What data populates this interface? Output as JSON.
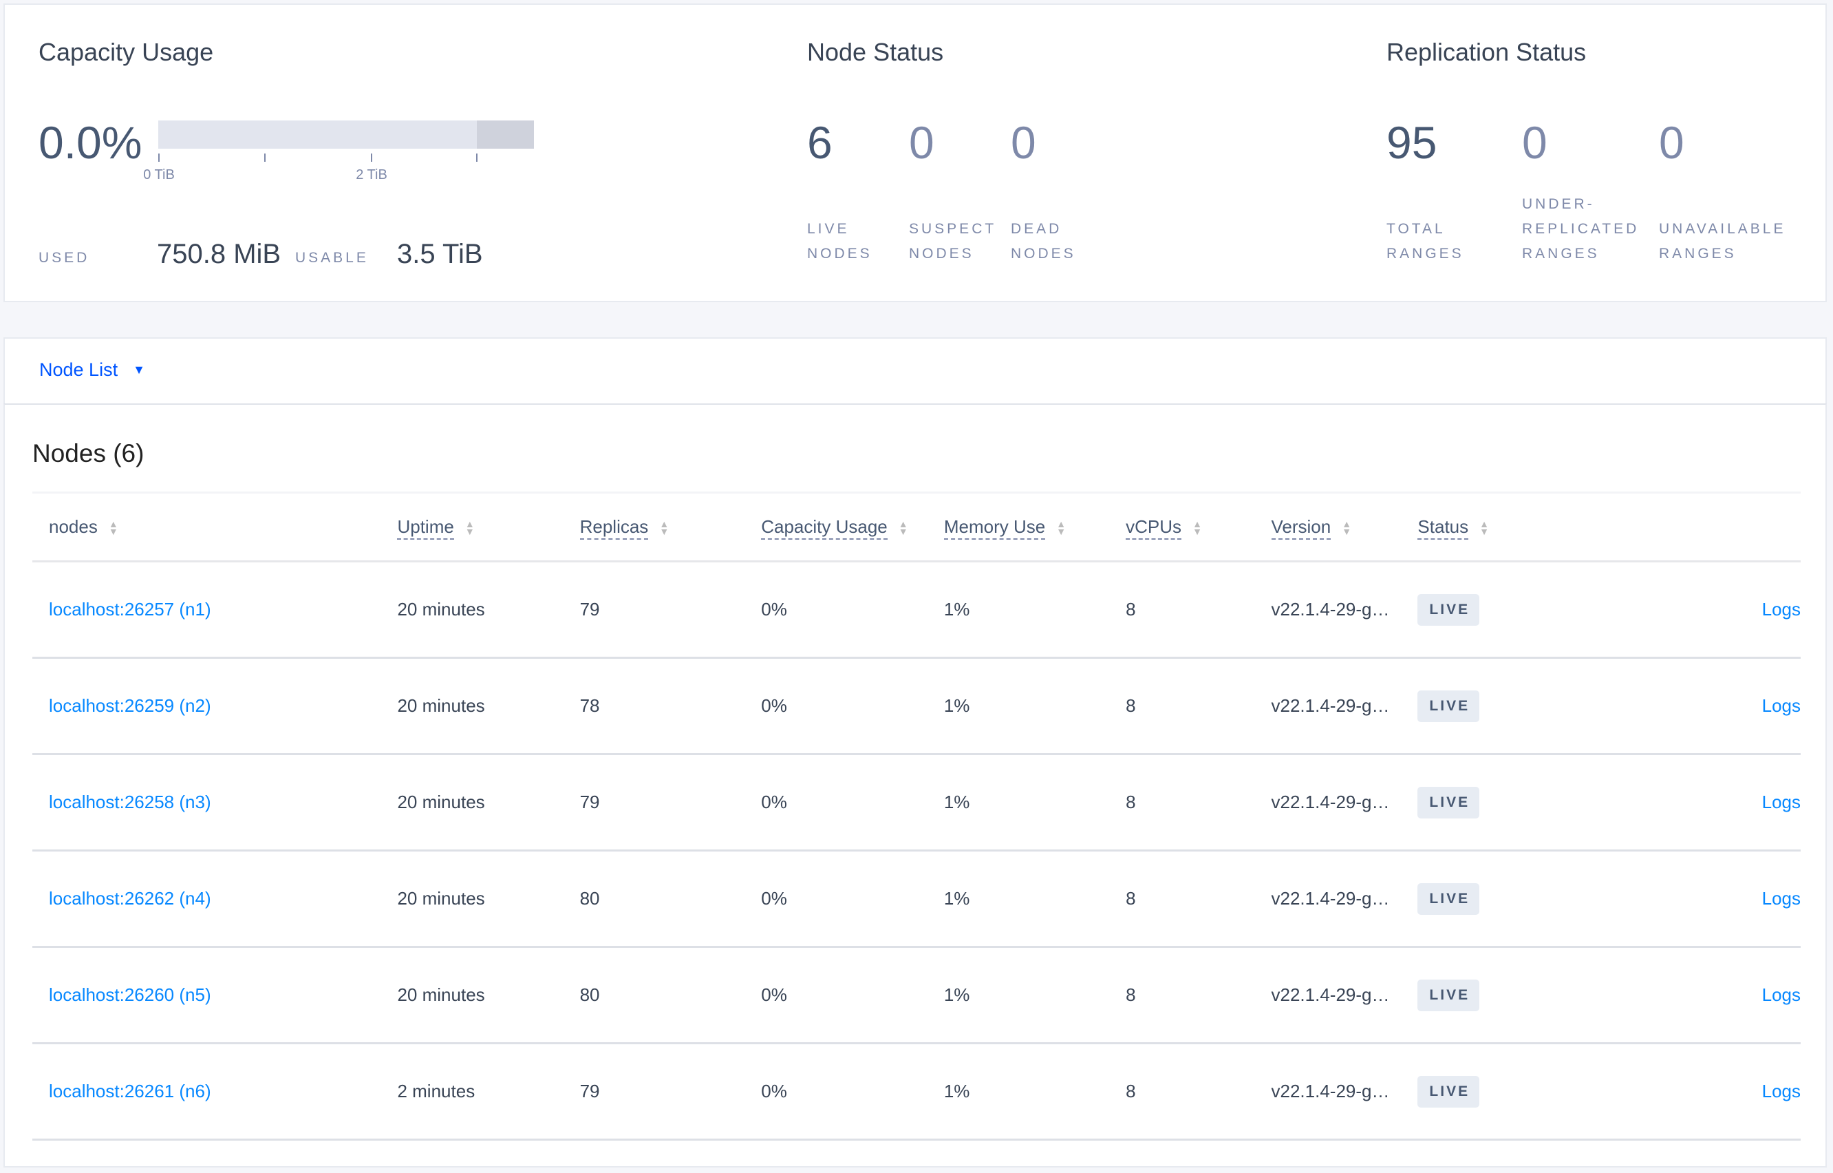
{
  "capacity": {
    "title": "Capacity Usage",
    "percent": "0.0%",
    "used_fraction": 0.0,
    "ticks": [
      "0 TiB",
      "2 TiB"
    ],
    "used_label": "USED",
    "used_value": "750.8 MiB",
    "usable_label": "USABLE",
    "usable_value": "3.5 TiB"
  },
  "node_status": {
    "title": "Node Status",
    "stats": [
      {
        "value": "6",
        "label1": "LIVE",
        "label2": "NODES"
      },
      {
        "value": "0",
        "label1": "SUSPECT",
        "label2": "NODES"
      },
      {
        "value": "0",
        "label1": "DEAD",
        "label2": "NODES"
      }
    ]
  },
  "replication_status": {
    "title": "Replication Status",
    "stats": [
      {
        "value": "95",
        "label1": "TOTAL",
        "label2": "RANGES"
      },
      {
        "value": "0",
        "label0": "UNDER-",
        "label1": "REPLICATED",
        "label2": "RANGES"
      },
      {
        "value": "0",
        "label1": "UNAVAILABLE",
        "label2": "RANGES"
      }
    ]
  },
  "nav": {
    "label": "Node List"
  },
  "table": {
    "title": "Nodes (6)",
    "columns": [
      "nodes",
      "Uptime",
      "Replicas",
      "Capacity Usage",
      "Memory Use",
      "vCPUs",
      "Version",
      "Status"
    ],
    "rows": [
      {
        "node": "localhost:26257 (n1)",
        "uptime": "20 minutes",
        "replicas": "79",
        "capacity": "0%",
        "memory": "1%",
        "vcpus": "8",
        "version": "v22.1.4-29-g…",
        "status": "LIVE",
        "logs": "Logs"
      },
      {
        "node": "localhost:26259 (n2)",
        "uptime": "20 minutes",
        "replicas": "78",
        "capacity": "0%",
        "memory": "1%",
        "vcpus": "8",
        "version": "v22.1.4-29-g…",
        "status": "LIVE",
        "logs": "Logs"
      },
      {
        "node": "localhost:26258 (n3)",
        "uptime": "20 minutes",
        "replicas": "79",
        "capacity": "0%",
        "memory": "1%",
        "vcpus": "8",
        "version": "v22.1.4-29-g…",
        "status": "LIVE",
        "logs": "Logs"
      },
      {
        "node": "localhost:26262 (n4)",
        "uptime": "20 minutes",
        "replicas": "80",
        "capacity": "0%",
        "memory": "1%",
        "vcpus": "8",
        "version": "v22.1.4-29-g…",
        "status": "LIVE",
        "logs": "Logs"
      },
      {
        "node": "localhost:26260 (n5)",
        "uptime": "20 minutes",
        "replicas": "80",
        "capacity": "0%",
        "memory": "1%",
        "vcpus": "8",
        "version": "v22.1.4-29-g…",
        "status": "LIVE",
        "logs": "Logs"
      },
      {
        "node": "localhost:26261 (n6)",
        "uptime": "2 minutes",
        "replicas": "79",
        "capacity": "0%",
        "memory": "1%",
        "vcpus": "8",
        "version": "v22.1.4-29-g…",
        "status": "LIVE",
        "logs": "Logs"
      }
    ]
  },
  "colors": {
    "link": "#0788ff",
    "nav": "#0055ff",
    "text": "#394455",
    "muted": "#7e89a9",
    "badge_bg": "#e7ecf3"
  }
}
